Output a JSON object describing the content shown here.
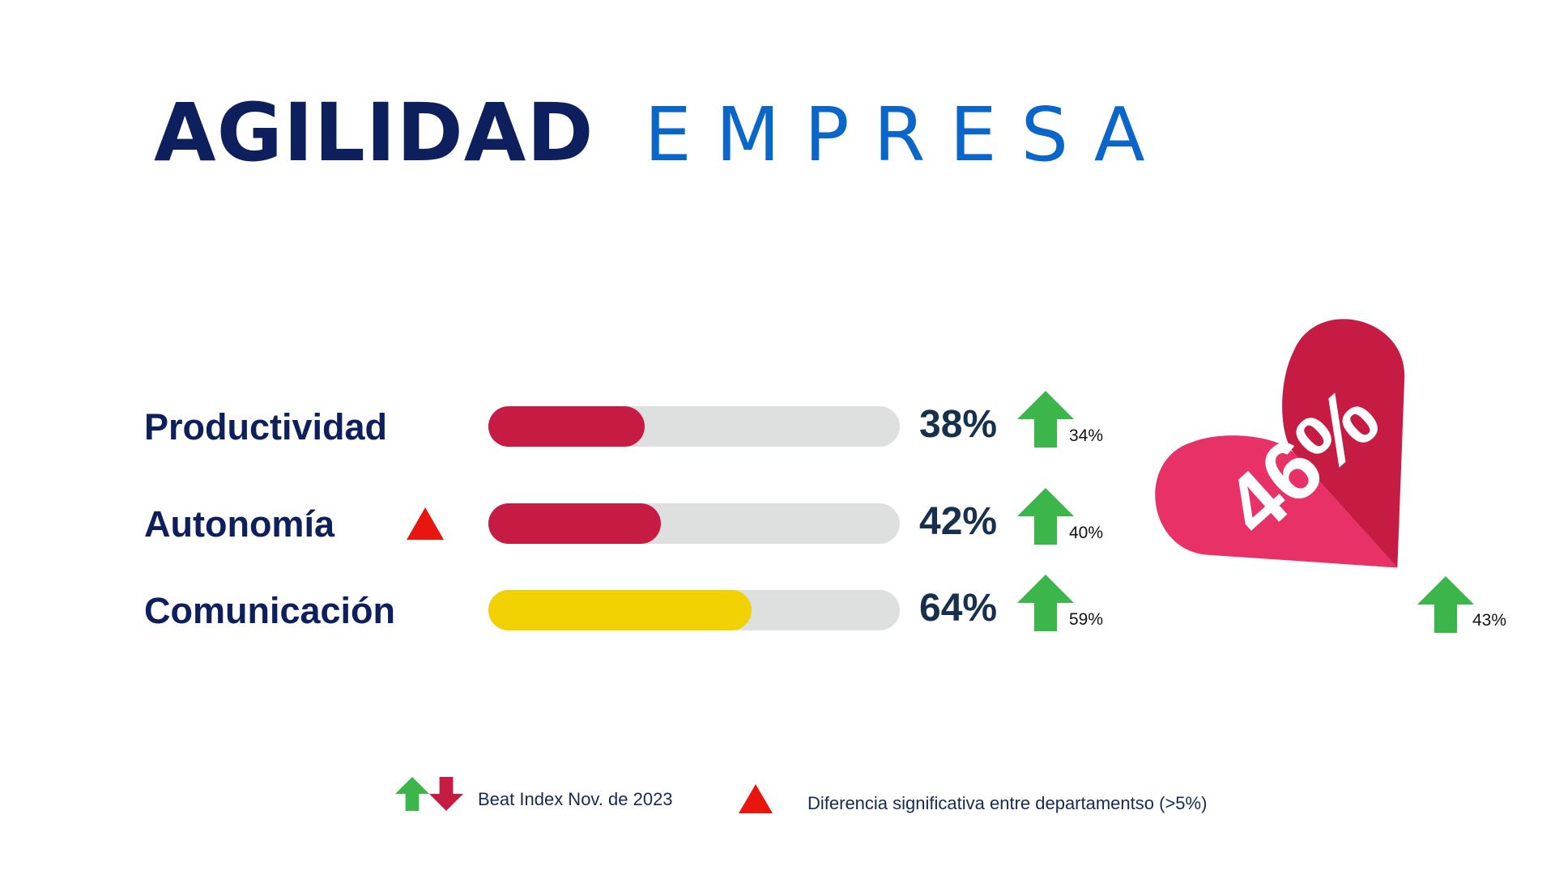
{
  "title": {
    "part1": "AGILIDAD",
    "part2": "EMPRESA"
  },
  "colors": {
    "title_dark": "#0d1f5c",
    "title_blue": "#0b66c9",
    "bar_red": "#c61c43",
    "bar_yellow": "#f2d102",
    "track_grey": "#dedfdf",
    "arrow_green": "#3cb54a",
    "arrow_red": "#c61c43",
    "sig_red": "#e8160e",
    "heart_left": "#e83167",
    "heart_right": "#c61c43"
  },
  "chart_data": {
    "type": "bar",
    "orientation": "horizontal",
    "xlim": [
      0,
      100
    ],
    "categories": [
      "Productividad",
      "Autonomía",
      "Comunicación"
    ],
    "values": [
      38,
      42,
      64
    ],
    "value_labels": [
      "38%",
      "42%",
      "64%"
    ],
    "beat_index": [
      34,
      40,
      59
    ],
    "beat_index_labels": [
      "34%",
      "40%",
      "59%"
    ],
    "beat_direction": [
      "up",
      "up",
      "up"
    ],
    "bar_colors": [
      "#c61c43",
      "#c61c43",
      "#f2d102"
    ],
    "significant_difference": [
      false,
      true,
      false
    ]
  },
  "overall": {
    "value": 46,
    "label": "46%",
    "beat_index_label": "43%",
    "beat_direction": "up"
  },
  "legend": {
    "beat_index": "Beat Index Nov. de 2023",
    "significant": "Diferencia significativa entre departamentso (>5%)"
  }
}
